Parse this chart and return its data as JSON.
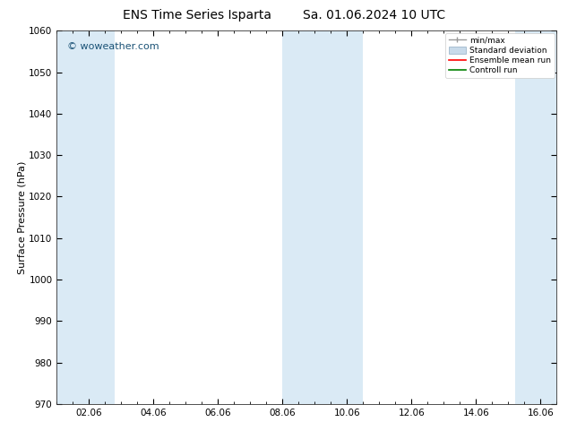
{
  "title_left": "ENS Time Series Isparta",
  "title_right": "Sa. 01.06.2024 10 UTC",
  "ylabel": "Surface Pressure (hPa)",
  "ylim": [
    970,
    1060
  ],
  "yticks": [
    970,
    980,
    990,
    1000,
    1010,
    1020,
    1030,
    1040,
    1050,
    1060
  ],
  "xlim": [
    0.0,
    15.5
  ],
  "xtick_labels": [
    "02.06",
    "04.06",
    "06.06",
    "08.06",
    "10.06",
    "12.06",
    "14.06",
    "16.06"
  ],
  "xtick_positions": [
    1,
    3,
    5,
    7,
    9,
    11,
    13,
    15
  ],
  "shaded_bands": [
    {
      "xmin": 0.0,
      "xmax": 1.8
    },
    {
      "xmin": 7.0,
      "xmax": 9.5
    },
    {
      "xmin": 14.2,
      "xmax": 15.5
    }
  ],
  "band_color": "#daeaf5",
  "background_color": "#ffffff",
  "watermark": "© woweather.com",
  "watermark_color": "#1a5276",
  "watermark_fontsize": 8,
  "legend_items": [
    {
      "label": "min/max",
      "color": "#a0a0a0",
      "type": "errorbar"
    },
    {
      "label": "Standard deviation",
      "color": "#c8daea",
      "type": "box"
    },
    {
      "label": "Ensemble mean run",
      "color": "#ff0000",
      "type": "line"
    },
    {
      "label": "Controll run",
      "color": "#008000",
      "type": "line"
    }
  ],
  "title_fontsize": 10,
  "axis_fontsize": 8,
  "tick_fontsize": 7.5,
  "fig_width": 6.34,
  "fig_height": 4.9,
  "dpi": 100
}
